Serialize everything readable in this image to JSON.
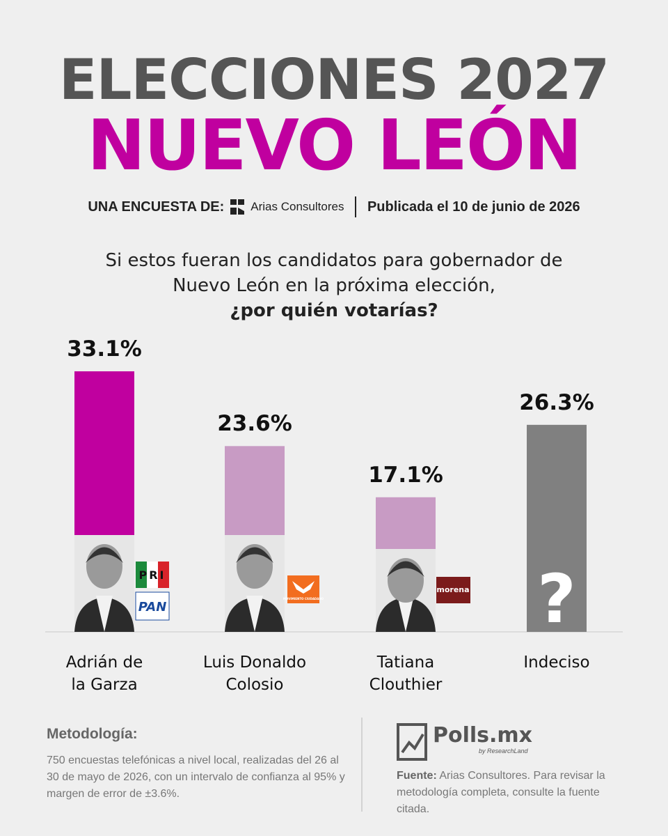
{
  "chart_data": {
    "type": "bar",
    "title": "ELECCIONES 2027",
    "subtitle": "NUEVO LEÓN",
    "survey_prefix": "UNA ENCUESTA DE:",
    "pollster": "Arias Consultores",
    "published": "Publicada el 10 de junio de 2026",
    "question": "Si estos fueran los candidatos para gobernador de Nuevo León en la próxima elección,",
    "question_emphasis": "¿por quién votarías?",
    "categories": [
      "Adrián de la Garza",
      "Luis Donaldo Colosio",
      "Tatiana Clouthier",
      "Indeciso"
    ],
    "values": [
      33.1,
      23.6,
      17.1,
      26.3
    ],
    "value_labels": [
      "33.1%",
      "23.6%",
      "17.1%",
      "26.3%"
    ],
    "colors": [
      "#c0009f",
      "#c89bc4",
      "#c89bc4",
      "#808080"
    ],
    "badges": [
      [
        "PRI",
        "PAN"
      ],
      [
        "MOVIMIENTO CIUDADANO"
      ],
      [
        "morena"
      ],
      [
        "?"
      ]
    ],
    "methodology_title": "Metodología:",
    "methodology": "750 encuestas telefónicas a nivel local, realizadas del 26 al 30 de mayo de 2026, con un intervalo de confianza al 95% y margen de error de ±3.6%.",
    "brand": "Polls.mx",
    "brand_sub": "by ResearchLand",
    "source_label": "Fuente:",
    "source": "Arias Consultores. Para revisar la metodología completa, consulte la fuente citada."
  }
}
